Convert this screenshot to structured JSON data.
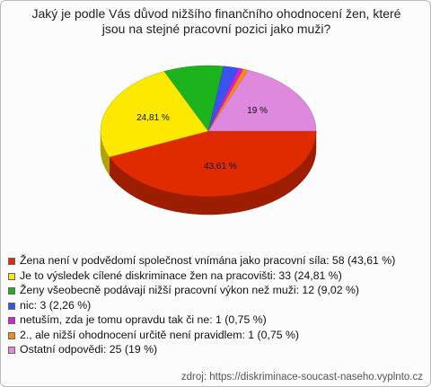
{
  "chart_data": {
    "type": "pie",
    "title": "Jaký je podle Vás důvod nižšího finančního ohodnocení žen, které jsou na stejné pracovní pozici jako muži?",
    "categories": [
      "Žena není v podvědomí společnost vnímána jako pracovní síla: 58 (43,61 %)",
      "Je to výsledek cílené diskriminace žen na pracovišti: 33 (24,81 %)",
      "Ženy všeobecně podávají nižší pracovní výkon než muži: 12 (9,02 %)",
      "nic: 3 (2,26 %)",
      "netuším, zda je tomu opravdu tak či ne: 1 (0,75 %)",
      "2., ale nižší ohodnocení určitě není pravidlem: 1 (0,75 %)",
      "Ostatní odpovědi: 25 (19 %)"
    ],
    "values": [
      43.61,
      24.81,
      9.02,
      2.26,
      0.75,
      0.75,
      19
    ],
    "value_labels": [
      "43,61 %",
      "24,81 %",
      null,
      null,
      null,
      null,
      "19 %"
    ],
    "colors": [
      "#e02a00",
      "#fde800",
      "#1cb31c",
      "#3a52f2",
      "#d81fd8",
      "#ff8c00",
      "#de88de"
    ],
    "source": "zdroj: https://diskriminace-soucast-naseho.vyplnto.cz"
  }
}
